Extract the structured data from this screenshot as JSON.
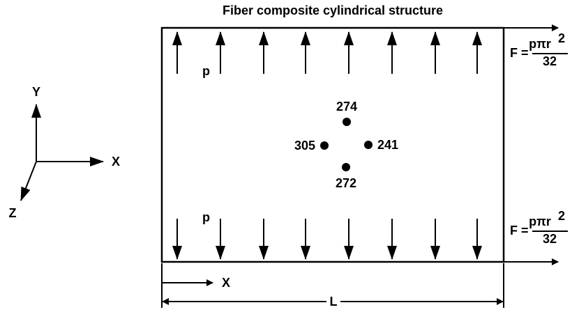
{
  "title": "Fiber composite cylindrical structure",
  "axes": {
    "y": "Y",
    "x": "X",
    "z": "Z"
  },
  "pressure_labels": [
    "p",
    "p"
  ],
  "nodes": [
    {
      "label": "274"
    },
    {
      "label": "305"
    },
    {
      "label": "241"
    },
    {
      "label": "272"
    }
  ],
  "forces": [
    {
      "lhs": "F =",
      "numerator": "pπr",
      "exponent": "2",
      "denominator": "32"
    },
    {
      "lhs": "F =",
      "numerator": "pπr",
      "exponent": "2",
      "denominator": "32"
    }
  ],
  "dimensions": {
    "x": "X",
    "length": "L"
  }
}
